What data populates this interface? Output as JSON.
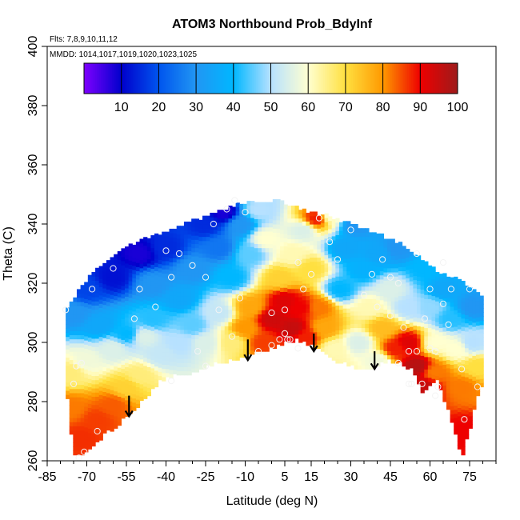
{
  "chart_data": {
    "type": "heatmap",
    "title": "ATOM3 Northbound Prob_BdyInf",
    "annotations": {
      "flights": "Flts: 7,8,9,10,11,12",
      "dates": "MMDD: 1014,1017,1019,1020,1023,1025"
    },
    "xlabel": "Latitude (deg N)",
    "ylabel": "Theta (C)",
    "xlim": [
      -85,
      85
    ],
    "ylim": [
      260,
      400
    ],
    "x_ticks": [
      "-85",
      "-70",
      "-55",
      "-40",
      "-25",
      "-10",
      "5",
      "15",
      "30",
      "45",
      "60",
      "75"
    ],
    "y_ticks": [
      "260",
      "280",
      "300",
      "320",
      "340",
      "360",
      "380",
      "400"
    ],
    "colorbar": {
      "range": [
        0,
        100
      ],
      "ticks": [
        "10",
        "20",
        "30",
        "40",
        "50",
        "60",
        "70",
        "80",
        "90",
        "100"
      ],
      "colors": [
        "#7f00ff",
        "#0000cc",
        "#0055ee",
        "#2196f3",
        "#00b7ff",
        "#b7e1ff",
        "#ffffd0",
        "#ffe040",
        "#ff9900",
        "#ee0000",
        "#9e1b1b"
      ]
    },
    "grid": false,
    "domain_boundary": {
      "lat": [
        -78,
        -75,
        -72,
        -69,
        -66,
        -63,
        -60,
        -57,
        -54,
        -51,
        -48,
        -45,
        -42,
        -39,
        -36,
        -33,
        -30,
        -27,
        -24,
        -21,
        -18,
        -15,
        -12,
        -9,
        -6,
        -3,
        0,
        3,
        6,
        9,
        12,
        15,
        18,
        21,
        24,
        27,
        30,
        33,
        36,
        39,
        42,
        45,
        48,
        51,
        54,
        57,
        60,
        63,
        66,
        69,
        72,
        75,
        78,
        80
      ],
      "theta_top": [
        311,
        315,
        319,
        322,
        325,
        327,
        329,
        331,
        333,
        334,
        335,
        336,
        337,
        338,
        339,
        340,
        341,
        342,
        343,
        344,
        345,
        346,
        347,
        347,
        348,
        348,
        348,
        348,
        347,
        346,
        345,
        344,
        343,
        343,
        342,
        341,
        340,
        339,
        338,
        337,
        336,
        335,
        334,
        332,
        330,
        328,
        326,
        324,
        323,
        322,
        321,
        319,
        317,
        316
      ],
      "theta_bottom": [
        287,
        262,
        262,
        264,
        266,
        269,
        271,
        273,
        276,
        278,
        281,
        284,
        287,
        288,
        289,
        289,
        290,
        291,
        292,
        293,
        293,
        294,
        295,
        296,
        297,
        297,
        298,
        299,
        300,
        301,
        300,
        299,
        298,
        296,
        294,
        293,
        292,
        291,
        291,
        292,
        293,
        294,
        293,
        292,
        290,
        283,
        285,
        287,
        279,
        272,
        261,
        270,
        282,
        286
      ]
    },
    "probability_knots": [
      {
        "lat": -76,
        "theta": 290,
        "p": 66
      },
      {
        "lat": -76,
        "theta": 278,
        "p": 82
      },
      {
        "lat": -72,
        "theta": 268,
        "p": 87
      },
      {
        "lat": -66,
        "theta": 274,
        "p": 86
      },
      {
        "lat": -60,
        "theta": 279,
        "p": 84
      },
      {
        "lat": -55,
        "theta": 285,
        "p": 72
      },
      {
        "lat": -50,
        "theta": 289,
        "p": 66
      },
      {
        "lat": -70,
        "theta": 294,
        "p": 58
      },
      {
        "lat": -60,
        "theta": 298,
        "p": 55
      },
      {
        "lat": -48,
        "theta": 302,
        "p": 55
      },
      {
        "lat": -42,
        "theta": 296,
        "p": 52
      },
      {
        "lat": -75,
        "theta": 310,
        "p": 30
      },
      {
        "lat": -65,
        "theta": 306,
        "p": 35
      },
      {
        "lat": -55,
        "theta": 303,
        "p": 40
      },
      {
        "lat": -45,
        "theta": 308,
        "p": 42
      },
      {
        "lat": -35,
        "theta": 300,
        "p": 50
      },
      {
        "lat": -30,
        "theta": 306,
        "p": 45
      },
      {
        "lat": -25,
        "theta": 300,
        "p": 55
      },
      {
        "lat": -70,
        "theta": 318,
        "p": 18
      },
      {
        "lat": -60,
        "theta": 322,
        "p": 12
      },
      {
        "lat": -50,
        "theta": 330,
        "p": 8
      },
      {
        "lat": -45,
        "theta": 320,
        "p": 30
      },
      {
        "lat": -35,
        "theta": 315,
        "p": 35
      },
      {
        "lat": -40,
        "theta": 332,
        "p": 15
      },
      {
        "lat": -30,
        "theta": 325,
        "p": 30
      },
      {
        "lat": -25,
        "theta": 340,
        "p": 15
      },
      {
        "lat": -20,
        "theta": 332,
        "p": 25
      },
      {
        "lat": -18,
        "theta": 344,
        "p": 8
      },
      {
        "lat": -15,
        "theta": 322,
        "p": 40
      },
      {
        "lat": -20,
        "theta": 310,
        "p": 52
      },
      {
        "lat": -12,
        "theta": 340,
        "p": 30
      },
      {
        "lat": -5,
        "theta": 345,
        "p": 50
      },
      {
        "lat": -2,
        "theta": 335,
        "p": 60
      },
      {
        "lat": -8,
        "theta": 330,
        "p": 45
      },
      {
        "lat": -15,
        "theta": 300,
        "p": 66
      },
      {
        "lat": -10,
        "theta": 305,
        "p": 80
      },
      {
        "lat": -8,
        "theta": 312,
        "p": 78
      },
      {
        "lat": -3,
        "theta": 300,
        "p": 86
      },
      {
        "lat": 0,
        "theta": 308,
        "p": 94
      },
      {
        "lat": 5,
        "theta": 314,
        "p": 92
      },
      {
        "lat": 8,
        "theta": 305,
        "p": 95
      },
      {
        "lat": 11,
        "theta": 312,
        "p": 90
      },
      {
        "lat": 13,
        "theta": 302,
        "p": 88
      },
      {
        "lat": 3,
        "theta": 322,
        "p": 72
      },
      {
        "lat": 8,
        "theta": 330,
        "p": 62
      },
      {
        "lat": 12,
        "theta": 338,
        "p": 55
      },
      {
        "lat": 17,
        "theta": 342,
        "p": 88
      },
      {
        "lat": 22,
        "theta": 343,
        "p": 60
      },
      {
        "lat": 15,
        "theta": 325,
        "p": 70
      },
      {
        "lat": 18,
        "theta": 312,
        "p": 82
      },
      {
        "lat": 20,
        "theta": 305,
        "p": 78
      },
      {
        "lat": 24,
        "theta": 298,
        "p": 62
      },
      {
        "lat": 26,
        "theta": 318,
        "p": 40
      },
      {
        "lat": 28,
        "theta": 332,
        "p": 35
      },
      {
        "lat": 32,
        "theta": 340,
        "p": 30
      },
      {
        "lat": 35,
        "theta": 325,
        "p": 38
      },
      {
        "lat": 33,
        "theta": 300,
        "p": 55
      },
      {
        "lat": 37,
        "theta": 312,
        "p": 62
      },
      {
        "lat": 40,
        "theta": 294,
        "p": 58
      },
      {
        "lat": 42,
        "theta": 305,
        "p": 75
      },
      {
        "lat": 45,
        "theta": 318,
        "p": 55
      },
      {
        "lat": 40,
        "theta": 330,
        "p": 35
      },
      {
        "lat": 48,
        "theta": 332,
        "p": 30
      },
      {
        "lat": 47,
        "theta": 298,
        "p": 88
      },
      {
        "lat": 52,
        "theta": 300,
        "p": 92
      },
      {
        "lat": 55,
        "theta": 292,
        "p": 97
      },
      {
        "lat": 58,
        "theta": 285,
        "p": 95
      },
      {
        "lat": 52,
        "theta": 312,
        "p": 50
      },
      {
        "lat": 58,
        "theta": 325,
        "p": 40
      },
      {
        "lat": 60,
        "theta": 312,
        "p": 48
      },
      {
        "lat": 62,
        "theta": 300,
        "p": 60
      },
      {
        "lat": 62,
        "theta": 290,
        "p": 82
      },
      {
        "lat": 65,
        "theta": 318,
        "p": 35
      },
      {
        "lat": 68,
        "theta": 308,
        "p": 42
      },
      {
        "lat": 70,
        "theta": 298,
        "p": 60
      },
      {
        "lat": 72,
        "theta": 285,
        "p": 82
      },
      {
        "lat": 73,
        "theta": 270,
        "p": 90
      },
      {
        "lat": 76,
        "theta": 300,
        "p": 50
      },
      {
        "lat": 78,
        "theta": 292,
        "p": 70
      },
      {
        "lat": 76,
        "theta": 312,
        "p": 30
      }
    ],
    "observations": [
      {
        "lat": -78,
        "theta": 311
      },
      {
        "lat": -74,
        "theta": 292
      },
      {
        "lat": -72,
        "theta": 293
      },
      {
        "lat": -71,
        "theta": 263
      },
      {
        "lat": -75,
        "theta": 286
      },
      {
        "lat": -73,
        "theta": 261
      },
      {
        "lat": -66,
        "theta": 270
      },
      {
        "lat": -68,
        "theta": 318
      },
      {
        "lat": -60,
        "theta": 325
      },
      {
        "lat": -50,
        "theta": 318
      },
      {
        "lat": -52,
        "theta": 308
      },
      {
        "lat": -44,
        "theta": 312
      },
      {
        "lat": -40,
        "theta": 331
      },
      {
        "lat": -35,
        "theta": 330
      },
      {
        "lat": -38,
        "theta": 322
      },
      {
        "lat": -30,
        "theta": 326
      },
      {
        "lat": -22,
        "theta": 340
      },
      {
        "lat": -17,
        "theta": 345
      },
      {
        "lat": -14,
        "theta": 348
      },
      {
        "lat": -10,
        "theta": 344
      },
      {
        "lat": -25,
        "theta": 322
      },
      {
        "lat": -20,
        "theta": 311
      },
      {
        "lat": -15,
        "theta": 302
      },
      {
        "lat": -28,
        "theta": 297
      },
      {
        "lat": -38,
        "theta": 287
      },
      {
        "lat": -25,
        "theta": 292
      },
      {
        "lat": -5,
        "theta": 297
      },
      {
        "lat": 0,
        "theta": 299
      },
      {
        "lat": 3,
        "theta": 301
      },
      {
        "lat": 5,
        "theta": 303
      },
      {
        "lat": 6,
        "theta": 301
      },
      {
        "lat": 7,
        "theta": 301
      },
      {
        "lat": -12,
        "theta": 315
      },
      {
        "lat": 0,
        "theta": 310
      },
      {
        "lat": 5,
        "theta": 311
      },
      {
        "lat": 10,
        "theta": 298
      },
      {
        "lat": 10,
        "theta": 327
      },
      {
        "lat": 12,
        "theta": 318
      },
      {
        "lat": 15,
        "theta": 323
      },
      {
        "lat": 18,
        "theta": 342
      },
      {
        "lat": 22,
        "theta": 334
      },
      {
        "lat": 25,
        "theta": 328
      },
      {
        "lat": 30,
        "theta": 338
      },
      {
        "lat": 35,
        "theta": 316
      },
      {
        "lat": 38,
        "theta": 323
      },
      {
        "lat": 40,
        "theta": 312
      },
      {
        "lat": 42,
        "theta": 328
      },
      {
        "lat": 45,
        "theta": 322
      },
      {
        "lat": 45,
        "theta": 309
      },
      {
        "lat": 48,
        "theta": 293
      },
      {
        "lat": 50,
        "theta": 305
      },
      {
        "lat": 52,
        "theta": 297
      },
      {
        "lat": 52,
        "theta": 286
      },
      {
        "lat": 53,
        "theta": 286
      },
      {
        "lat": 55,
        "theta": 297
      },
      {
        "lat": 57,
        "theta": 286
      },
      {
        "lat": 58,
        "theta": 308
      },
      {
        "lat": 60,
        "theta": 298
      },
      {
        "lat": 62,
        "theta": 297
      },
      {
        "lat": 62,
        "theta": 282
      },
      {
        "lat": 63,
        "theta": 285
      },
      {
        "lat": 65,
        "theta": 313
      },
      {
        "lat": 67,
        "theta": 306
      },
      {
        "lat": 68,
        "theta": 318
      },
      {
        "lat": 72,
        "theta": 291
      },
      {
        "lat": 73,
        "theta": 274
      },
      {
        "lat": 75,
        "theta": 318
      },
      {
        "lat": 78,
        "theta": 285
      },
      {
        "lat": 55,
        "theta": 330
      },
      {
        "lat": 60,
        "theta": 318
      },
      {
        "lat": 48,
        "theta": 320
      },
      {
        "lat": 65,
        "theta": 327
      }
    ],
    "arrows": [
      {
        "lat": -54,
        "theta_from": 282,
        "theta_to": 275
      },
      {
        "lat": -9,
        "theta_from": 301,
        "theta_to": 294
      },
      {
        "lat": 16,
        "theta_from": 303,
        "theta_to": 297
      },
      {
        "lat": 39,
        "theta_from": 297,
        "theta_to": 291
      }
    ]
  }
}
